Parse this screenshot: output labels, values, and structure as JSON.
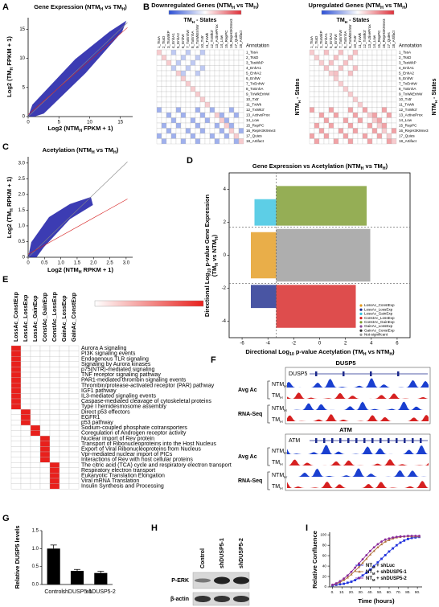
{
  "chart_data": [
    {
      "panel": "A",
      "type": "scatter",
      "title": [
        "Gene Expression (NTM",
        "H",
        " vs TM",
        "H",
        ")"
      ],
      "x_label": [
        "Log2 (NTM",
        "H",
        " FPKM + 1)"
      ],
      "y_label": [
        "Log2 (TM",
        "H",
        " FPKM + 1)"
      ],
      "xlim": [
        0,
        17
      ],
      "ylim": [
        0,
        17
      ],
      "xticks": [
        0,
        5,
        10,
        15
      ],
      "yticks": [
        0,
        5,
        10,
        15
      ],
      "color": "#1a1aa6"
    },
    {
      "panel": "C",
      "type": "scatter",
      "title": [
        "Acetylation (NTM",
        "H",
        " vs TM",
        "H",
        ")"
      ],
      "x_label": [
        "Log2 (NTM",
        "H",
        " RPKM + 1)"
      ],
      "y_label": [
        "Log2 (TM",
        "H",
        " RPKM + 1)"
      ],
      "xlim": [
        0,
        3.2
      ],
      "ylim": [
        0,
        3.2
      ],
      "xticks": [
        0,
        0.5,
        {
          "value": 1,
          "label": "1.0"
        },
        1.5,
        {
          "value": 2,
          "label": "2.0"
        },
        2.5,
        {
          "value": 3,
          "label": "3.0"
        }
      ],
      "yticks": [
        0,
        0.5,
        {
          "value": 1,
          "label": "1.0"
        },
        1.5,
        {
          "value": 2,
          "label": "2.0"
        },
        2.5,
        {
          "value": 3,
          "label": "3.0"
        }
      ],
      "color": "#1a1aa6"
    },
    {
      "panel": "D",
      "type": "scatter",
      "title": [
        "Gene Expression vs Acetylation  (NTM",
        "H",
        " vs TM",
        "H",
        ")"
      ],
      "x_label": [
        "Directional Log",
        "10",
        " p-value Acetylation (TM",
        "H",
        " vs NTM",
        "H",
        ")"
      ],
      "y_label": [
        "Directional Log",
        "10",
        " p-value Gene Expression"
      ],
      "y_label_2": [
        "(TM",
        "H",
        " vs NTM",
        "H",
        ")"
      ],
      "xlim": [
        -7,
        7
      ],
      "ylim": [
        -5,
        5
      ],
      "xticks": [
        -6,
        -4,
        -2,
        0,
        2,
        4,
        6
      ],
      "yticks": [
        -4,
        -2,
        0,
        2,
        4
      ],
      "series": [
        {
          "name": "LossAc_ConstExp",
          "color": "#e39a1b"
        },
        {
          "name": "LossAc_LossExp",
          "color": "#1c2a8c"
        },
        {
          "name": "LossAc_GainExp",
          "color": "#35c2e0"
        },
        {
          "name": "ConstAc_LossExp",
          "color": "#d62020"
        },
        {
          "name": "ConstAc_GainExp",
          "color": "#7a9a2a"
        },
        {
          "name": "GainAc_LossExp",
          "color": "#8a4a9a"
        },
        {
          "name": "GainAc_ConstExp",
          "color": "#333333"
        },
        {
          "name": "Not-significant",
          "color": "#9a9a9a"
        }
      ]
    },
    {
      "panel": "G",
      "type": "bar",
      "y_label": "Relative DUSP5 levels",
      "categories": [
        "Control",
        "shDUSP5-1",
        "shDUSP5-2"
      ],
      "values": [
        1.0,
        0.38,
        0.32
      ],
      "errors": [
        0.1,
        0.04,
        0.05
      ],
      "ylim": [
        0,
        1.5
      ],
      "yticks": [
        {
          "value": 0,
          "label": "0.0"
        },
        0.5,
        {
          "value": 1,
          "label": "1.0"
        },
        1.5
      ],
      "color": "#000000"
    },
    {
      "panel": "I",
      "type": "line",
      "x_label": "Time (hours)",
      "y_label": "Relative Confluence",
      "x": [
        0,
        4,
        8,
        12,
        16,
        20,
        24,
        28,
        32,
        36,
        40,
        44,
        48,
        52,
        56,
        60,
        64,
        68,
        72,
        76,
        80,
        84,
        88,
        92
      ],
      "xlim": [
        -3,
        95
      ],
      "ylim": [
        0,
        105
      ],
      "xticks": [
        {
          "value": 0,
          "label": "0."
        },
        {
          "value": 10,
          "label": "10."
        },
        {
          "value": 20,
          "label": "20."
        },
        {
          "value": 30,
          "label": "30."
        },
        {
          "value": 40,
          "label": "40."
        },
        {
          "value": 50,
          "label": "50."
        },
        {
          "value": 60,
          "label": "60."
        },
        {
          "value": 70,
          "label": "70."
        },
        {
          "value": 80,
          "label": "80."
        },
        {
          "value": 90,
          "label": "90."
        }
      ],
      "yticks": [
        0,
        20,
        40,
        60,
        80,
        100
      ],
      "series": [
        {
          "name": [
            "NT",
            "M",
            " + shLuc"
          ],
          "color": "#2233dd",
          "marker": "square",
          "values": [
            3,
            4,
            5,
            6,
            8,
            10,
            13,
            17,
            22,
            27,
            33,
            40,
            47,
            54,
            61,
            68,
            74,
            80,
            85,
            89,
            92,
            94,
            95,
            96
          ]
        },
        {
          "name": [
            "NT",
            "M",
            " + shDUSP5-1"
          ],
          "color": "#b0703a",
          "marker": "triangle",
          "values": [
            4,
            6,
            9,
            13,
            18,
            24,
            31,
            38,
            46,
            54,
            62,
            69,
            76,
            82,
            87,
            90,
            93,
            95,
            96,
            97,
            97,
            97,
            97,
            97
          ]
        },
        {
          "name": [
            "NT",
            "M",
            " + shDUSP5-2"
          ],
          "color": "#8a2a9a",
          "marker": "circle",
          "values": [
            4,
            7,
            11,
            16,
            22,
            29,
            37,
            45,
            53,
            61,
            69,
            76,
            82,
            87,
            91,
            93,
            95,
            96,
            97,
            97,
            98,
            98,
            98,
            98
          ]
        }
      ]
    }
  ],
  "heatmaps": {
    "panel": "B",
    "col_header": [
      "TM",
      "H",
      " - States"
    ],
    "row_header": [
      "NTM",
      "H",
      " - States"
    ],
    "annotation_header": "Annotation",
    "states": [
      "1_TssA",
      "2_TssD",
      "3_TssWkP",
      "4_EnhA1",
      "5_EnhA2",
      "6_EnhW",
      "7_TxEnhW",
      "8_TxEnhA",
      "9_TxWkEnhW",
      "10_Tx5'",
      "11_TxWk",
      "12_TxWk3'",
      "13_ActiveProx",
      "14_Low",
      "15_RepPC",
      "16_RepH3K9me3",
      "17_Quies",
      "18_Artifact"
    ],
    "panels": [
      {
        "title": [
          "Downregulated Genes (NTM",
          "H",
          " vs TM",
          "H",
          ")"
        ]
      },
      {
        "title": [
          "Upregulated Genes (NTM",
          "H",
          " vs TM",
          "H",
          ")"
        ]
      }
    ]
  },
  "pathways": {
    "panel": "E",
    "groups": [
      {
        "name": "LossAc_ConstExp",
        "color": "#a08f1e"
      },
      {
        "name": "LossAc_LossExp",
        "color": "#1c2a8c"
      },
      {
        "name": "LossAc_GainExp",
        "color": "#2bb5d8"
      },
      {
        "name": "ConstAc_GainExp",
        "color": "#2e8b2e"
      },
      {
        "name": "ConstAc_LossExp",
        "color": "#d62020"
      },
      {
        "name": "GainAc_LossExp",
        "color": "#222222"
      },
      {
        "name": "GainAc_ConstExp",
        "color": "#222222"
      }
    ],
    "terms": [
      {
        "name": "Aurora A signaling",
        "color": "#a08f1e",
        "group": 0
      },
      {
        "name": "PI3K signaling events",
        "color": "#a08f1e",
        "group": 0
      },
      {
        "name": "Endogenous TLR signaling",
        "color": "#a08f1e",
        "group": 0
      },
      {
        "name": "Signaling by Aurora kinases",
        "color": "#a08f1e",
        "group": 0
      },
      {
        "name": "p75(NTR)-mediated signaling",
        "color": "#a08f1e",
        "group": 0
      },
      {
        "name": "TNF receptor signaling pathway",
        "color": "#a08f1e",
        "group": 0
      },
      {
        "name": "PAR1-mediated thrombin signaling events",
        "color": "#333333",
        "group": 0
      },
      {
        "name": "Thrombin/protease-activated receptor (PAR) pathway",
        "color": "#333333",
        "group": 0
      },
      {
        "name": "IGF1 pathway",
        "color": "#333333",
        "group": 0
      },
      {
        "name": "IL3-mediated signaling events",
        "color": "#333333",
        "group": 0
      },
      {
        "name": "Caspase-mediated cleavage of cytoskeletal proteins",
        "color": "#333333",
        "group": 0
      },
      {
        "name": "Type I hemidesmosome assembly",
        "color": "#333333",
        "group": 0
      },
      {
        "name": "Direct p53 effectors",
        "color": "#1c2a8c",
        "group": 1
      },
      {
        "name": "EGFR1",
        "color": "#1c2a8c",
        "group": 1
      },
      {
        "name": "p53 pathway",
        "color": "#1c2a8c",
        "group": 1
      },
      {
        "name": "Sodium-coupled phosphate cotransporters",
        "color": "#2bb5d8",
        "group": 2
      },
      {
        "name": "Coregulation of Androgen receptor activity",
        "color": "#2bb5d8",
        "group": 2
      },
      {
        "name": "Nuclear import of Rev protein",
        "color": "#333333",
        "group": 3
      },
      {
        "name": "Transport of Ribonucleoproteins into the Host Nucleus",
        "color": "#333333",
        "group": 3
      },
      {
        "name": "Export of Viral Ribonucleoproteins from Nucleus",
        "color": "#333333",
        "group": 3
      },
      {
        "name": "Vpr-mediated nuclear import of PICs",
        "color": "#333333",
        "group": 3
      },
      {
        "name": "Interactions of Rev with host cellular proteins",
        "color": "#333333",
        "group": 3
      },
      {
        "name": "The citric acid (TCA) cycle and respiratory electron transport",
        "color": "#d62020",
        "group": 4
      },
      {
        "name": "Respiratory electron transport",
        "color": "#d62020",
        "group": 4
      },
      {
        "name": "Eukaryotic Translation Elongation",
        "color": "#d62020",
        "group": 4
      },
      {
        "name": "Viral mRNA Translation",
        "color": "#d62020",
        "group": 4
      },
      {
        "name": "Insulin Synthesis and Processing",
        "color": "#d62020",
        "group": 4
      }
    ]
  },
  "tracks": {
    "panel": "F",
    "loci": [
      {
        "gene": "DUSP5",
        "box_label": "DUSP5"
      },
      {
        "gene": "ATM",
        "box_label": "ATM"
      }
    ],
    "ac_label": "Avg Ac",
    "rna_label": "RNA-Seq",
    "ntm_label": [
      "NTM",
      "H"
    ],
    "tm_label": [
      "TM",
      "H"
    ]
  },
  "western": {
    "panel": "H",
    "lanes": [
      "Control",
      "shDUSP5-1",
      "shDUSP5-2"
    ],
    "proteins": [
      "P-ERK",
      "β-actin"
    ]
  }
}
